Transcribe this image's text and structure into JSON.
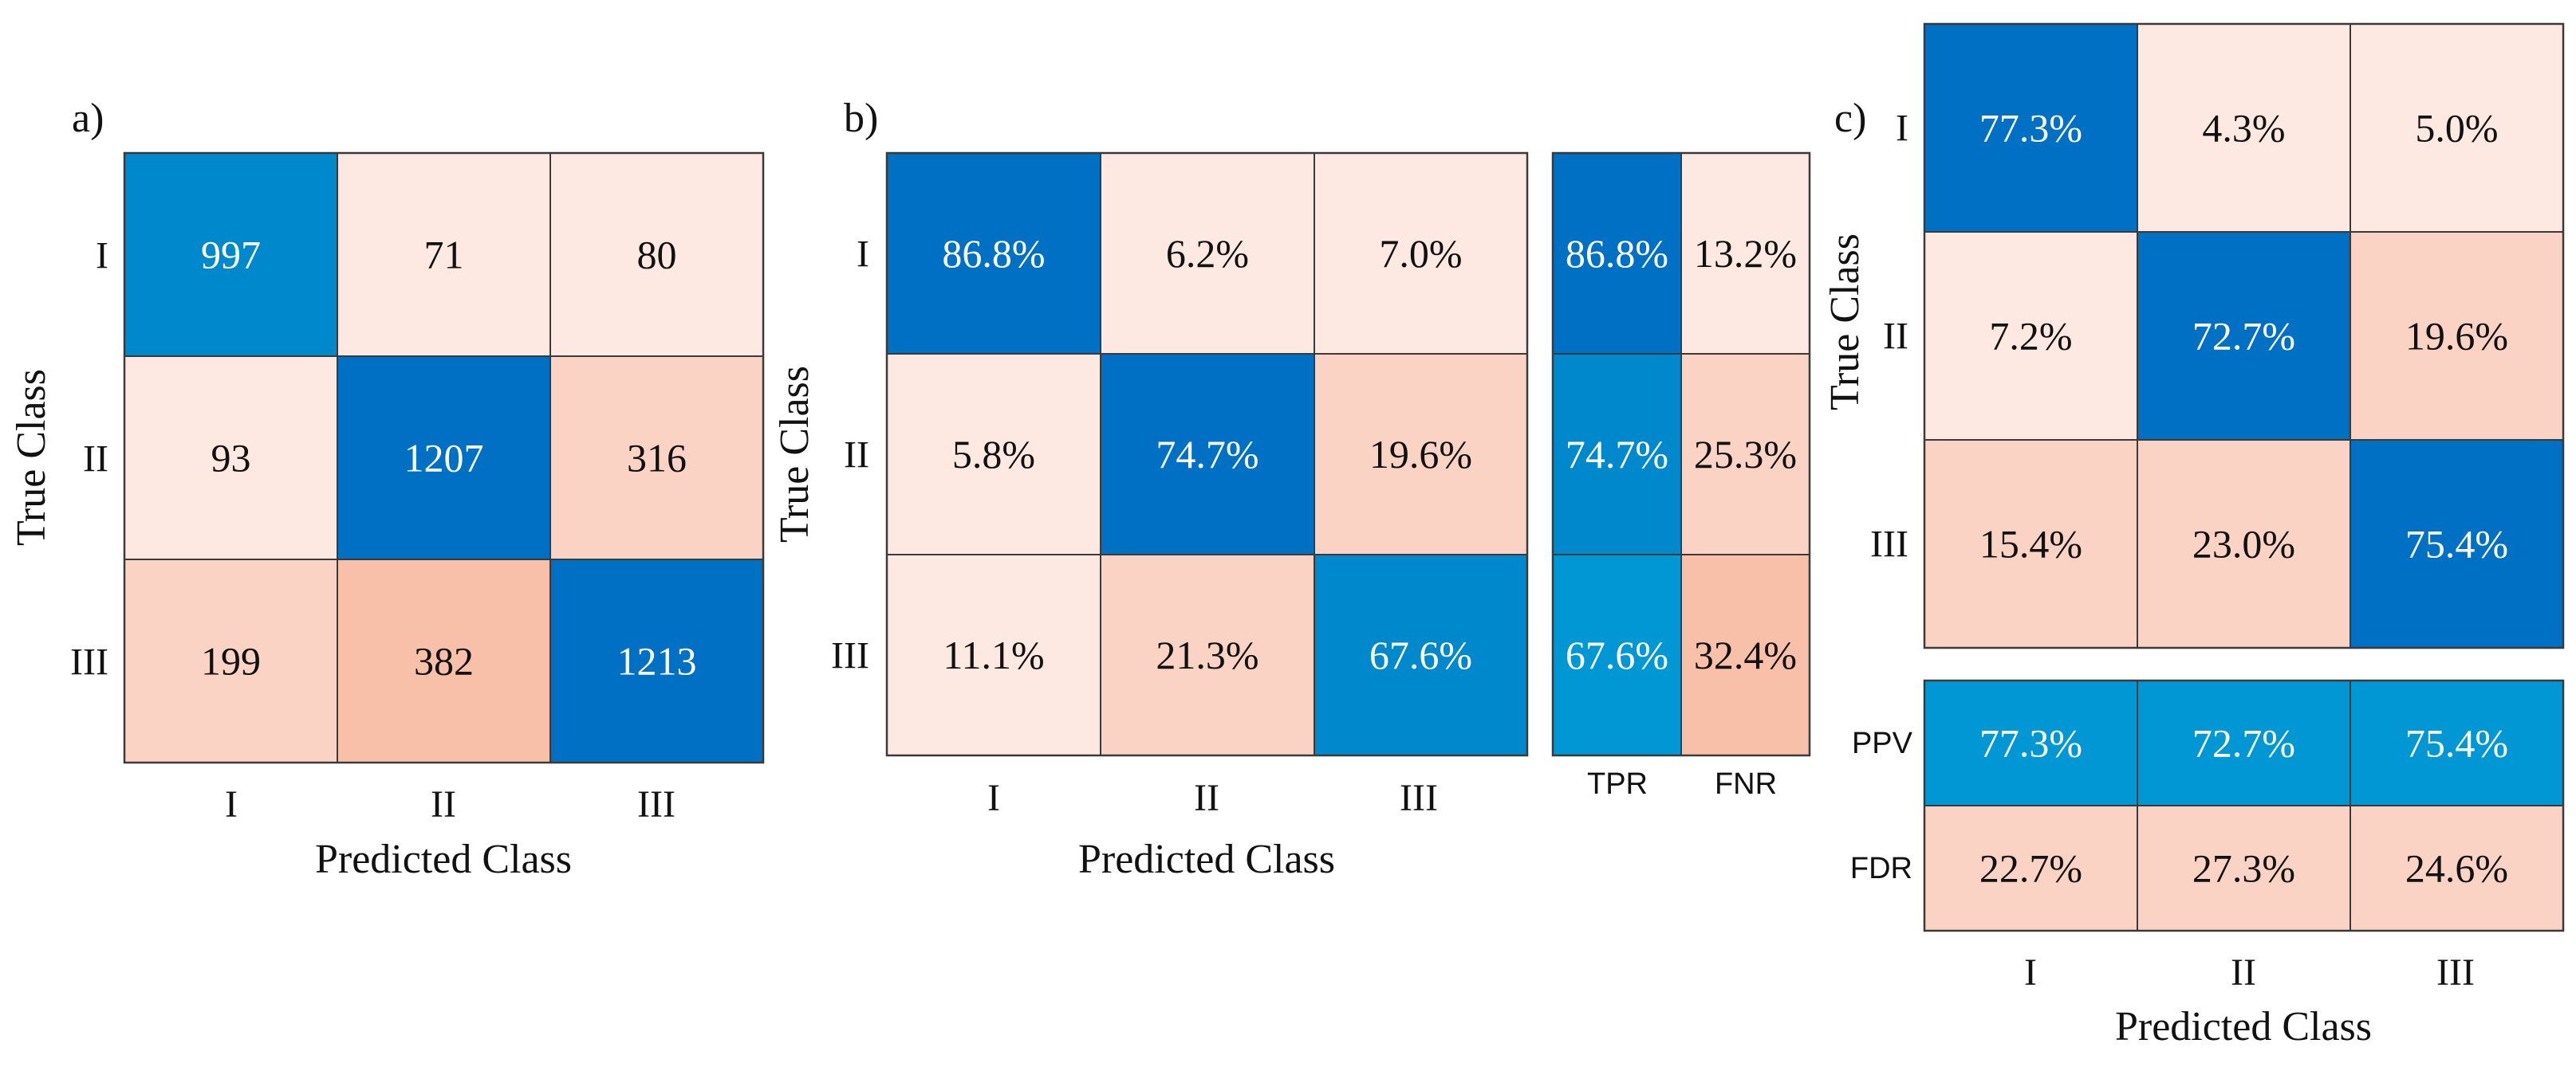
{
  "colors": {
    "blue_dark": "#0070c4",
    "blue_mid": "#0088cc",
    "blue_light": "#0097d4",
    "pink_light": "#fde9e1",
    "pink_mid": "#fbd3c4",
    "pink_dark": "#f8bfa9",
    "text_dark": "#111111",
    "text_light": "#ffffff"
  },
  "chart_data": [
    {
      "id": "a",
      "panel_label": "a)",
      "type": "heatmap",
      "title": "",
      "xlabel": "Predicted Class",
      "ylabel": "True Class",
      "row_labels": [
        "I",
        "II",
        "III"
      ],
      "col_labels": [
        "I",
        "II",
        "III"
      ],
      "values": [
        [
          997,
          71,
          80
        ],
        [
          93,
          1207,
          316
        ],
        [
          199,
          382,
          1213
        ]
      ],
      "cell_text": [
        [
          "997",
          "71",
          "80"
        ],
        [
          "93",
          "1207",
          "316"
        ],
        [
          "199",
          "382",
          "1213"
        ]
      ],
      "cell_colors": [
        [
          "blue_mid",
          "pink_light",
          "pink_light"
        ],
        [
          "pink_light",
          "blue_dark",
          "pink_mid"
        ],
        [
          "pink_mid",
          "pink_dark",
          "blue_dark"
        ]
      ]
    },
    {
      "id": "b",
      "panel_label": "b)",
      "type": "heatmap",
      "title": "",
      "xlabel": "Predicted Class",
      "ylabel": "True Class",
      "row_labels": [
        "I",
        "II",
        "III"
      ],
      "col_labels": [
        "I",
        "II",
        "III"
      ],
      "values": [
        [
          86.8,
          6.2,
          7.0
        ],
        [
          5.8,
          74.7,
          19.6
        ],
        [
          11.1,
          21.3,
          67.6
        ]
      ],
      "cell_text": [
        [
          "86.8%",
          "6.2%",
          "7.0%"
        ],
        [
          "5.8%",
          "74.7%",
          "19.6%"
        ],
        [
          "11.1%",
          "21.3%",
          "67.6%"
        ]
      ],
      "cell_colors": [
        [
          "blue_dark",
          "pink_light",
          "pink_light"
        ],
        [
          "pink_light",
          "blue_dark",
          "pink_mid"
        ],
        [
          "pink_light",
          "pink_mid",
          "blue_mid"
        ]
      ],
      "side_summary": {
        "col_labels": [
          "TPR",
          "FNR"
        ],
        "values": [
          [
            86.8,
            13.2
          ],
          [
            74.7,
            25.3
          ],
          [
            67.6,
            32.4
          ]
        ],
        "cell_text": [
          [
            "86.8%",
            "13.2%"
          ],
          [
            "74.7%",
            "25.3%"
          ],
          [
            "67.6%",
            "32.4%"
          ]
        ],
        "cell_colors": [
          [
            "blue_dark",
            "pink_light"
          ],
          [
            "blue_mid",
            "pink_mid"
          ],
          [
            "blue_light",
            "pink_dark"
          ]
        ]
      }
    },
    {
      "id": "c",
      "panel_label": "c)",
      "type": "heatmap",
      "title": "",
      "xlabel": "Predicted Class",
      "ylabel": "True Class",
      "row_labels": [
        "I",
        "II",
        "III"
      ],
      "col_labels": [
        "I",
        "II",
        "III"
      ],
      "values": [
        [
          77.3,
          4.3,
          5.0
        ],
        [
          7.2,
          72.7,
          19.6
        ],
        [
          15.4,
          23.0,
          75.4
        ]
      ],
      "cell_text": [
        [
          "77.3%",
          "4.3%",
          "5.0%"
        ],
        [
          "7.2%",
          "72.7%",
          "19.6%"
        ],
        [
          "15.4%",
          "23.0%",
          "75.4%"
        ]
      ],
      "cell_colors": [
        [
          "blue_dark",
          "pink_light",
          "pink_light"
        ],
        [
          "pink_light",
          "blue_dark",
          "pink_mid"
        ],
        [
          "pink_mid",
          "pink_mid",
          "blue_dark"
        ]
      ],
      "bottom_summary": {
        "row_labels": [
          "PPV",
          "FDR"
        ],
        "values": [
          [
            77.3,
            72.7,
            75.4
          ],
          [
            22.7,
            27.3,
            24.6
          ]
        ],
        "cell_text": [
          [
            "77.3%",
            "72.7%",
            "75.4%"
          ],
          [
            "22.7%",
            "27.3%",
            "24.6%"
          ]
        ],
        "cell_colors": [
          [
            "blue_light",
            "blue_light",
            "blue_light"
          ],
          [
            "pink_mid",
            "pink_mid",
            "pink_mid"
          ]
        ]
      }
    }
  ]
}
